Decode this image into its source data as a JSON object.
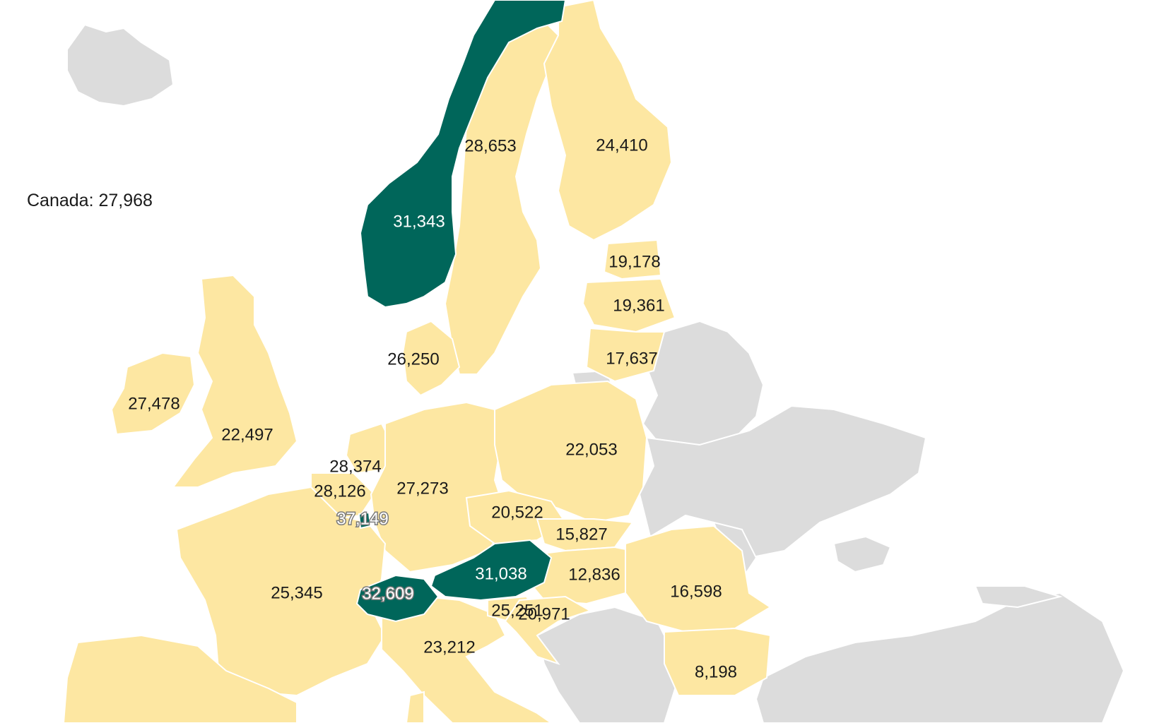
{
  "note": {
    "canada": "Canada: 27,968"
  },
  "colors": {
    "highlight": "#00665a",
    "data": "#fde7a2",
    "nodata": "#dcdcdc"
  },
  "labels": {
    "norway": "31,343",
    "sweden": "28,653",
    "finland": "24,410",
    "estonia": "19,178",
    "latvia": "19,361",
    "lithuania": "17,637",
    "denmark": "26,250",
    "ireland": "27,478",
    "uk": "22,497",
    "netherlands": "28,374",
    "belgium": "28,126",
    "luxembourg": "37,149",
    "germany": "27,273",
    "poland": "22,053",
    "czechia": "20,522",
    "slovakia": "15,827",
    "austria": "31,038",
    "hungary": "12,836",
    "romania": "16,598",
    "france": "25,345",
    "switzerland": "32,609",
    "slovenia": "25,251",
    "croatia": "20,971",
    "italy": "23,212",
    "bulgaria": "8,198"
  }
}
